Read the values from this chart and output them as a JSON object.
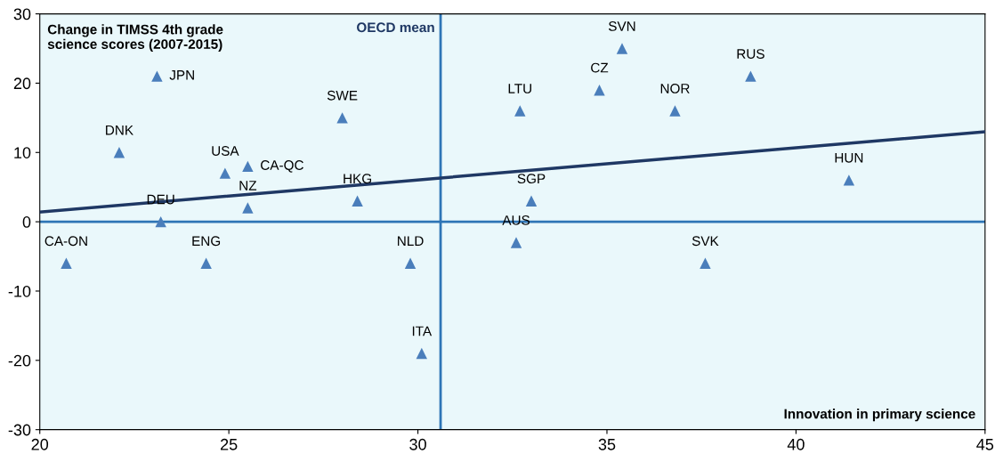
{
  "chart_data": {
    "type": "scatter",
    "ylabel": "Change in TIMSS 4th grade science scores (2007-2015)",
    "xlabel": "Innovation in primary science",
    "xlim": [
      20,
      45
    ],
    "xticks": [
      20,
      25,
      30,
      35,
      40,
      45
    ],
    "ylim": [
      -30,
      30
    ],
    "yticks": [
      -30,
      -20,
      -10,
      0,
      10,
      20,
      30
    ],
    "grid": false,
    "legend": false,
    "series": [
      {
        "marker": "triangle",
        "color": "#4a7ebb",
        "x": [
          20.7,
          22.1,
          23.1,
          23.2,
          24.4,
          24.9,
          25.5,
          25.5,
          28.0,
          28.4,
          29.8,
          30.1,
          32.6,
          32.7,
          33.0,
          34.8,
          35.4,
          36.8,
          37.6,
          38.8,
          41.4
        ],
        "values": [
          -6,
          10,
          21,
          0,
          -6,
          7,
          8,
          2,
          15,
          3,
          -6,
          -19,
          -3,
          16,
          3,
          19,
          25,
          16,
          -6,
          21,
          6
        ]
      },
      {
        "type": "line",
        "marker": "none",
        "color": "#1f3864",
        "x": [
          20,
          45
        ],
        "values": [
          1.4,
          13.0
        ]
      }
    ],
    "ref_lines": [
      {
        "axis": "x",
        "value": 30.6,
        "label": "OECD mean",
        "color": "#2e75b6"
      },
      {
        "axis": "y",
        "value": 0,
        "label": null,
        "color": "#2e75b6"
      }
    ],
    "annotations": [
      {
        "text": "CA-ON",
        "x": 20.7,
        "y": -6
      },
      {
        "text": "DNK",
        "x": 22.1,
        "y": 10
      },
      {
        "text": "JPN",
        "x": 23.1,
        "y": 21
      },
      {
        "text": "DEU",
        "x": 23.2,
        "y": 0
      },
      {
        "text": "ENG",
        "x": 24.4,
        "y": -6
      },
      {
        "text": "USA",
        "x": 24.9,
        "y": 7
      },
      {
        "text": "CA-QC",
        "x": 25.5,
        "y": 8
      },
      {
        "text": "NZ",
        "x": 25.5,
        "y": 2
      },
      {
        "text": "SWE",
        "x": 28.0,
        "y": 15
      },
      {
        "text": "HKG",
        "x": 28.4,
        "y": 3
      },
      {
        "text": "NLD",
        "x": 29.8,
        "y": -6
      },
      {
        "text": "ITA",
        "x": 30.1,
        "y": -19
      },
      {
        "text": "AUS",
        "x": 32.6,
        "y": -3
      },
      {
        "text": "LTU",
        "x": 32.7,
        "y": 16
      },
      {
        "text": "SGP",
        "x": 33.0,
        "y": 3
      },
      {
        "text": "CZ",
        "x": 34.8,
        "y": 19
      },
      {
        "text": "SVN",
        "x": 35.4,
        "y": 25
      },
      {
        "text": "NOR",
        "x": 36.8,
        "y": 16
      },
      {
        "text": "SVK",
        "x": 37.6,
        "y": -6
      },
      {
        "text": "RUS",
        "x": 38.8,
        "y": 21
      },
      {
        "text": "HUN",
        "x": 41.4,
        "y": 6
      }
    ]
  }
}
